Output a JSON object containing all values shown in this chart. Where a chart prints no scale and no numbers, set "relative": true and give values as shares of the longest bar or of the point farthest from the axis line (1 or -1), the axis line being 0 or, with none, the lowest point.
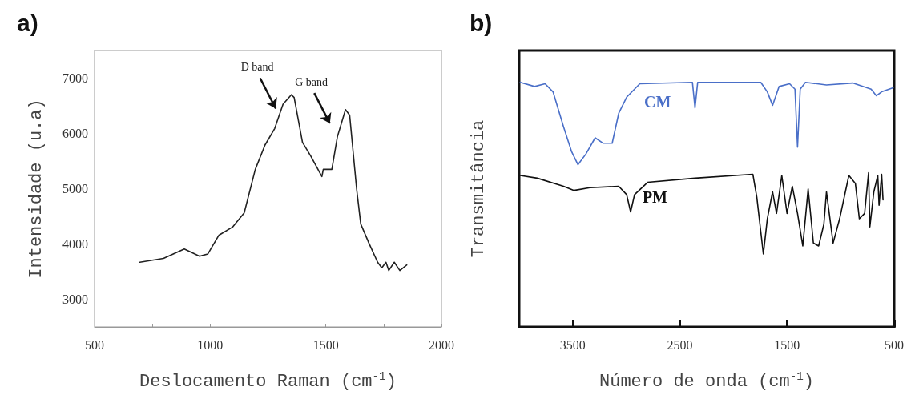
{
  "chart_data": [
    {
      "type": "line",
      "title": "a)",
      "xlabel": "Deslocamento Raman (cm$^{-1}$)",
      "ylabel": "Intensidade (u.a)",
      "xlim": [
        500,
        2000
      ],
      "xticks": [
        500,
        {
          "value": 750,
          "label": null
        },
        1000,
        {
          "value": 1250,
          "label": null
        },
        1500,
        {
          "value": 1750,
          "label": null
        },
        2000
      ],
      "ylim": [
        2500,
        7500
      ],
      "yticks": [
        3000,
        4000,
        5000,
        6000,
        7000
      ],
      "grid": false,
      "legend": false,
      "marker": "none",
      "line_style": "solid",
      "annotations": [
        "D band",
        "G band"
      ],
      "series": [
        {
          "color": "#222222",
          "x": [
            696,
            798,
            888,
            954,
            990,
            1038,
            1098,
            1147,
            1195,
            1237,
            1279,
            1315,
            1351,
            1363,
            1399,
            1435,
            1483,
            1489,
            1526,
            1550,
            1585,
            1603,
            1633,
            1651,
            1687,
            1724,
            1742,
            1760,
            1772,
            1796,
            1820,
            1850
          ],
          "values": [
            3670,
            3740,
            3910,
            3780,
            3820,
            4160,
            4310,
            4560,
            5350,
            5790,
            6090,
            6530,
            6700,
            6650,
            5840,
            5590,
            5220,
            5350,
            5350,
            5940,
            6430,
            6330,
            5000,
            4360,
            4010,
            3670,
            3570,
            3670,
            3520,
            3670,
            3520,
            3620
          ]
        }
      ]
    },
    {
      "type": "line",
      "title": "b)",
      "xlabel": "Número de onda (cm$^{-1}$)",
      "ylabel": "Transmitância",
      "relative": true,
      "xlim": [
        4000,
        500
      ],
      "xticks": [
        3500,
        2500,
        1500,
        500
      ],
      "tick_labels": "x",
      "grid": false,
      "legend": false,
      "marker": "none",
      "line_style": "solid",
      "series": [
        {
          "name": "CM",
          "color": "#4a6fc8",
          "x": [
            3990,
            3856,
            3758,
            3684,
            3586,
            3512,
            3451,
            3377,
            3291,
            3218,
            3132,
            3071,
            2997,
            2874,
            2383,
            2359,
            2334,
            1745,
            1684,
            1635,
            1574,
            1476,
            1426,
            1402,
            1377,
            1328,
            1132,
            887,
            715,
            666,
            617,
            510
          ],
          "values": [
            1.0,
            0.983,
            0.994,
            0.961,
            0.818,
            0.718,
            0.663,
            0.707,
            0.773,
            0.751,
            0.751,
            0.873,
            0.939,
            0.994,
            1.0,
            0.895,
            1.0,
            1.0,
            0.961,
            0.906,
            0.983,
            0.994,
            0.972,
            0.735,
            0.972,
            1.0,
            0.989,
            0.997,
            0.972,
            0.945,
            0.961,
            0.978
          ]
        },
        {
          "name": "PM",
          "color": "#111111",
          "x": [
            3990,
            3831,
            3586,
            3488,
            3340,
            3071,
            2997,
            2960,
            2923,
            2801,
            2359,
            1819,
            1782,
            1721,
            1684,
            1635,
            1598,
            1549,
            1500,
            1451,
            1402,
            1353,
            1303,
            1254,
            1205,
            1156,
            1132,
            1070,
            1009,
            923,
            862,
            825,
            776,
            739,
            727,
            690,
            653,
            641,
            617,
            604
          ],
          "values": [
            0.619,
            0.608,
            0.575,
            0.558,
            0.569,
            0.575,
            0.541,
            0.47,
            0.541,
            0.591,
            0.608,
            0.624,
            0.53,
            0.298,
            0.442,
            0.552,
            0.464,
            0.619,
            0.464,
            0.575,
            0.464,
            0.331,
            0.564,
            0.343,
            0.331,
            0.42,
            0.552,
            0.343,
            0.442,
            0.619,
            0.586,
            0.442,
            0.464,
            0.63,
            0.409,
            0.552,
            0.619,
            0.497,
            0.624,
            0.519
          ]
        }
      ]
    }
  ]
}
